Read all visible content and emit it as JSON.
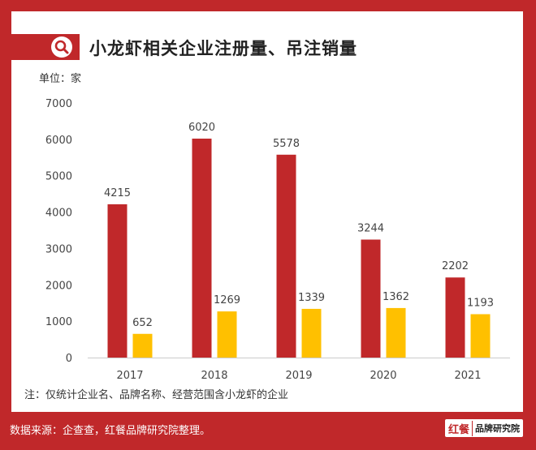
{
  "title": "小龙虾相关企业注册量、吊注销量",
  "unit_label": "单位：家",
  "note": "注：仅统计企业名、品牌名称、经营范围含小龙虾的企业",
  "source": "数据来源：企查查，红餐品牌研究院整理。",
  "brand": {
    "logo": "红餐",
    "name": "品牌研究院"
  },
  "icons": {
    "title": "search-icon"
  },
  "colors": {
    "frame": "#c0282a",
    "registered": "#c0282a",
    "cancelled": "#ffc000"
  },
  "chart_data": {
    "type": "bar",
    "categories": [
      "2017",
      "2018",
      "2019",
      "2020",
      "2021"
    ],
    "series": [
      {
        "values": [
          4215,
          6020,
          5578,
          3244,
          2202
        ]
      },
      {
        "values": [
          652,
          1269,
          1339,
          1362,
          1193
        ]
      }
    ],
    "ylim": [
      0,
      7000
    ],
    "yticks": [
      0,
      1000,
      2000,
      3000,
      4000,
      5000,
      6000,
      7000
    ],
    "grid": false
  }
}
